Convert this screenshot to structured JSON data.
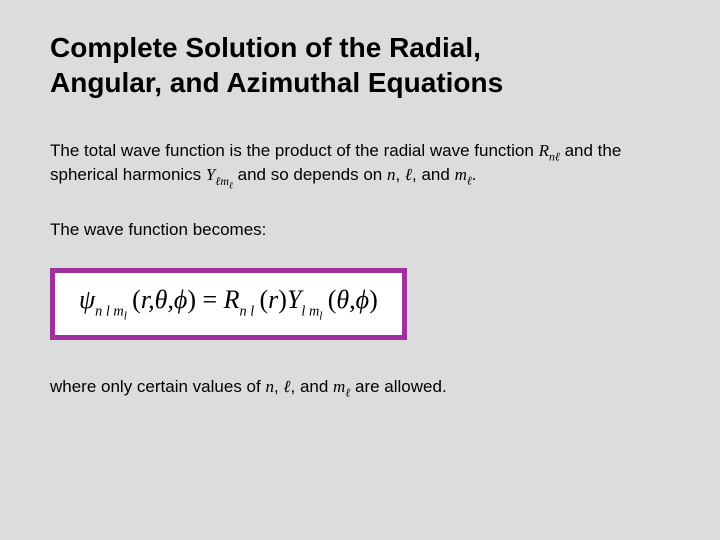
{
  "title_line1": "Complete Solution of the Radial,",
  "title_line2": "Angular, and Azimuthal Equations",
  "para1_pre": "The total wave function is the product of the radial wave function ",
  "R": "R",
  "nl_sub": "nℓ",
  "para1_mid": " and the spherical harmonics ",
  "Y": "Y",
  "lml_sub": "ℓm",
  "lml_sub_tail": "ℓ",
  "para1_post1": " and so depends on ",
  "n": "n",
  "comma1": ", ",
  "ell": "ℓ",
  "comma2": ", and ",
  "ml": "m",
  "ml_tail": "ℓ",
  "period": ".",
  "para2": "The wave function becomes:",
  "equation": {
    "psi": "ψ",
    "sub1": "n l m",
    "sub1_tail": "l",
    "open": "(",
    "args1": "r,θ,ϕ",
    "close": ")",
    "eq": " = ",
    "R": "R",
    "subR": "n l",
    "openR": "(",
    "argR": "r",
    "closeR": ")",
    "Y": "Y",
    "subY": "l m",
    "subY_tail": "l",
    "openY": "(",
    "argsY": "θ,ϕ",
    "closeY": ")"
  },
  "para3_pre": "where only certain values of ",
  "para3_post": " are allowed.",
  "colors": {
    "background": "#dcdcdc",
    "border": "#a030a0",
    "box_bg": "#ffffff",
    "text": "#000000"
  }
}
